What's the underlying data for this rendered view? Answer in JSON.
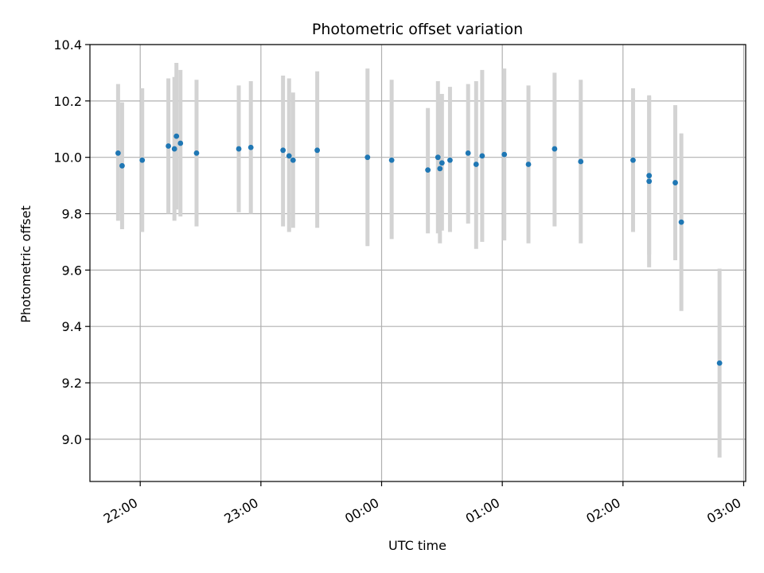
{
  "chart_data": {
    "type": "scatter",
    "title": "Photometric offset variation",
    "xlabel": "UTC time",
    "ylabel": "Photometric offset",
    "grid": true,
    "xlim": [
      "21:35",
      "03:01"
    ],
    "ylim": [
      8.85,
      10.4
    ],
    "xticks": [
      "22:00",
      "23:00",
      "00:00",
      "01:00",
      "02:00",
      "03:00"
    ],
    "yticks": [
      9.0,
      9.2,
      9.4,
      9.6,
      9.8,
      10.0,
      10.2,
      10.4
    ],
    "yticklabels": [
      "9.0",
      "9.2",
      "9.4",
      "9.6",
      "9.8",
      "10.0",
      "10.2",
      "10.4"
    ],
    "point_color": "#1f77b4",
    "errorbar_color": "#d3d3d3",
    "points": [
      {
        "x": "21:49",
        "y": 10.015,
        "err_low": 9.775,
        "err_high": 10.26
      },
      {
        "x": "21:51",
        "y": 9.97,
        "err_low": 9.745,
        "err_high": 10.195
      },
      {
        "x": "22:01",
        "y": 9.99,
        "err_low": 9.735,
        "err_high": 10.245
      },
      {
        "x": "22:14",
        "y": 10.04,
        "err_low": 9.8,
        "err_high": 10.28
      },
      {
        "x": "22:17",
        "y": 10.03,
        "err_low": 9.775,
        "err_high": 10.285
      },
      {
        "x": "22:18",
        "y": 10.075,
        "err_low": 9.815,
        "err_high": 10.335
      },
      {
        "x": "22:20",
        "y": 10.05,
        "err_low": 9.79,
        "err_high": 10.31
      },
      {
        "x": "22:28",
        "y": 10.015,
        "err_low": 9.755,
        "err_high": 10.275
      },
      {
        "x": "22:49",
        "y": 10.03,
        "err_low": 9.805,
        "err_high": 10.255
      },
      {
        "x": "22:55",
        "y": 10.035,
        "err_low": 9.8,
        "err_high": 10.27
      },
      {
        "x": "23:11",
        "y": 10.025,
        "err_low": 9.755,
        "err_high": 10.29
      },
      {
        "x": "23:14",
        "y": 10.005,
        "err_low": 9.735,
        "err_high": 10.28
      },
      {
        "x": "23:16",
        "y": 9.99,
        "err_low": 9.75,
        "err_high": 10.23
      },
      {
        "x": "23:28",
        "y": 10.025,
        "err_low": 9.75,
        "err_high": 10.305
      },
      {
        "x": "23:53",
        "y": 10.0,
        "err_low": 9.685,
        "err_high": 10.315
      },
      {
        "x": "00:05",
        "y": 9.99,
        "err_low": 9.71,
        "err_high": 10.275
      },
      {
        "x": "00:23",
        "y": 9.955,
        "err_low": 9.73,
        "err_high": 10.175
      },
      {
        "x": "00:28",
        "y": 10.0,
        "err_low": 9.73,
        "err_high": 10.27
      },
      {
        "x": "00:29",
        "y": 9.96,
        "err_low": 9.695,
        "err_high": 10.225
      },
      {
        "x": "00:30",
        "y": 9.98,
        "err_low": 9.74,
        "err_high": 10.225
      },
      {
        "x": "00:34",
        "y": 9.99,
        "err_low": 9.735,
        "err_high": 10.25
      },
      {
        "x": "00:43",
        "y": 10.015,
        "err_low": 9.765,
        "err_high": 10.26
      },
      {
        "x": "00:47",
        "y": 9.975,
        "err_low": 9.675,
        "err_high": 10.27
      },
      {
        "x": "00:50",
        "y": 10.005,
        "err_low": 9.7,
        "err_high": 10.31
      },
      {
        "x": "01:01",
        "y": 10.01,
        "err_low": 9.705,
        "err_high": 10.315
      },
      {
        "x": "01:13",
        "y": 9.975,
        "err_low": 9.695,
        "err_high": 10.255
      },
      {
        "x": "01:26",
        "y": 10.03,
        "err_low": 9.755,
        "err_high": 10.3
      },
      {
        "x": "01:39",
        "y": 9.985,
        "err_low": 9.695,
        "err_high": 10.275
      },
      {
        "x": "02:05",
        "y": 9.99,
        "err_low": 9.735,
        "err_high": 10.245
      },
      {
        "x": "02:13",
        "y": 9.915,
        "err_low": 9.61,
        "err_high": 10.22
      },
      {
        "x": "02:13",
        "y": 9.935,
        "err_low": 9.655,
        "err_high": 10.215
      },
      {
        "x": "02:26",
        "y": 9.91,
        "err_low": 9.635,
        "err_high": 10.185
      },
      {
        "x": "02:29",
        "y": 9.77,
        "err_low": 9.455,
        "err_high": 10.085
      },
      {
        "x": "02:48",
        "y": 9.27,
        "err_low": 8.935,
        "err_high": 9.605
      }
    ]
  }
}
